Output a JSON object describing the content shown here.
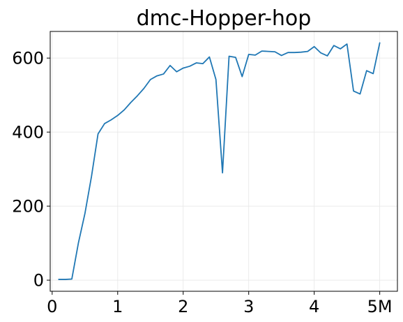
{
  "chart_data": {
    "type": "line",
    "title": "dmc-Hopper-hop",
    "xlabel": "",
    "ylabel": "",
    "xlim": [
      -0.03,
      5.27
    ],
    "ylim": [
      -30,
      672
    ],
    "grid": true,
    "legend": "none",
    "x_ticks": [
      {
        "value": 0,
        "label": "0"
      },
      {
        "value": 1,
        "label": "1"
      },
      {
        "value": 2,
        "label": "2"
      },
      {
        "value": 3,
        "label": "3"
      },
      {
        "value": 4,
        "label": "4"
      },
      {
        "value": 5,
        "label": "5M"
      }
    ],
    "y_ticks": [
      {
        "value": 0,
        "label": "0"
      },
      {
        "value": 200,
        "label": "200"
      },
      {
        "value": 400,
        "label": "400"
      },
      {
        "value": 600,
        "label": "600"
      }
    ],
    "colors": {
      "line": "#1f77b4",
      "grid": "#e6e6e6",
      "axis": "#000000"
    },
    "series": [
      {
        "x": [
          0.1,
          0.2,
          0.3,
          0.4,
          0.5,
          0.6,
          0.7,
          0.8,
          0.9,
          1.0,
          1.1,
          1.2,
          1.3,
          1.4,
          1.5,
          1.6,
          1.7,
          1.8,
          1.9,
          2.0,
          2.1,
          2.2,
          2.3,
          2.4,
          2.5,
          2.6,
          2.7,
          2.8,
          2.9,
          3.0,
          3.1,
          3.2,
          3.3,
          3.4,
          3.5,
          3.6,
          3.7,
          3.8,
          3.9,
          4.0,
          4.1,
          4.2,
          4.3,
          4.4,
          4.5,
          4.6,
          4.7,
          4.8,
          4.9,
          5.0
        ],
        "y": [
          2,
          2,
          3,
          100,
          180,
          280,
          395,
          423,
          433,
          445,
          460,
          480,
          498,
          518,
          542,
          552,
          557,
          580,
          563,
          573,
          578,
          587,
          585,
          603,
          542,
          290,
          605,
          602,
          550,
          610,
          608,
          619,
          618,
          617,
          607,
          615,
          615,
          616,
          618,
          631,
          614,
          606,
          634,
          625,
          638,
          511,
          503,
          566,
          558,
          641
        ]
      }
    ]
  }
}
